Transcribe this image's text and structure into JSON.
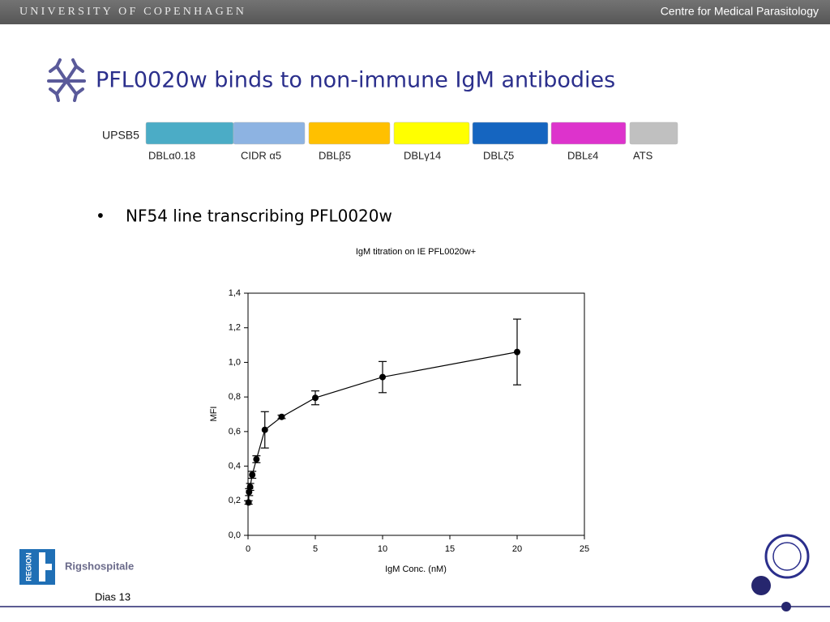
{
  "header": {
    "university": "UNIVERSITY OF COPENHAGEN",
    "centre": "Centre for Medical Parasitology"
  },
  "title": "PFL0020w binds to non-immune IgM antibodies",
  "domain_map": {
    "label": "UPSB5",
    "domains": [
      {
        "label": "DBLα0.18",
        "color": "#4bacc6"
      },
      {
        "label": "CIDR α5",
        "color": "#8db3e2"
      },
      {
        "label": "DBLβ5",
        "color": "#ffc000"
      },
      {
        "label": "DBLγ14",
        "color": "#ffff00"
      },
      {
        "label": "DBLζ5",
        "color": "#1565c0"
      },
      {
        "label": "DBLε4",
        "color": "#dd33cc"
      },
      {
        "label": "ATS",
        "color": "#c0c0c0"
      }
    ]
  },
  "bullets": [
    "NF54 line transcribing PFL0020w"
  ],
  "logos": {
    "region": "REGION",
    "hospital": "Rigshospitale"
  },
  "footer": "Dias 13",
  "chart_data": {
    "type": "scatter",
    "title": "IgM titration on IE PFL0020w+",
    "x_label": "IgM Conc. (nM)",
    "y_label": "MFI",
    "x": [
      0.039,
      0.078,
      0.156,
      0.3125,
      0.625,
      1.25,
      2.5,
      5,
      10,
      20
    ],
    "values": [
      0.19,
      0.25,
      0.28,
      0.35,
      0.44,
      0.61,
      0.685,
      0.795,
      0.915,
      1.06
    ],
    "errors": [
      0.01,
      0.02,
      0.02,
      0.02,
      0.02,
      0.105,
      0.01,
      0.04,
      0.09,
      0.19
    ],
    "color": "#000000",
    "xlim": [
      0,
      25
    ],
    "xticks": [
      0,
      5,
      10,
      15,
      20,
      25
    ],
    "ylim": [
      0,
      1.4
    ],
    "yticks": [
      {
        "value": 0,
        "label": "0,0"
      },
      {
        "value": 0.2,
        "label": "0,2"
      },
      {
        "value": 0.4,
        "label": "0,4"
      },
      {
        "value": 0.6,
        "label": "0,6"
      },
      {
        "value": 0.8,
        "label": "0,8"
      },
      {
        "value": 1.0,
        "label": "1,0"
      },
      {
        "value": 1.2,
        "label": "1,2"
      },
      {
        "value": 1.4,
        "label": "1,4"
      }
    ],
    "grid": false
  }
}
